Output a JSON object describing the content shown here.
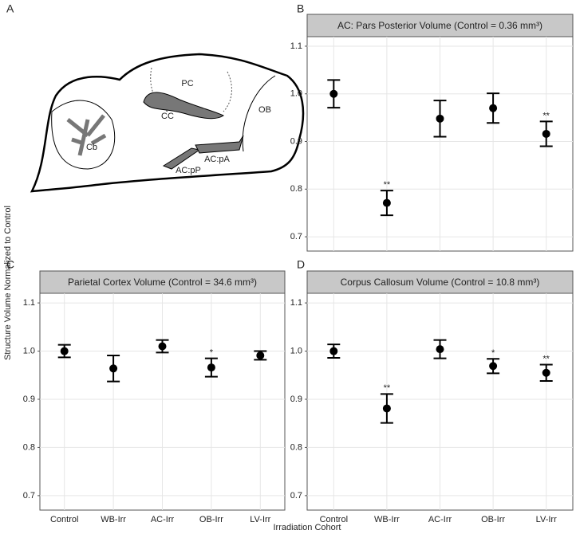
{
  "y_label": "Structure Volume Normalized to Control",
  "x_label": "Irradiation Cohort",
  "diagram": {
    "panel": "A",
    "labels": [
      "PC",
      "CC",
      "OB",
      "Cb",
      "AC:pA",
      "AC:pP"
    ]
  },
  "chart_data": [
    {
      "type": "errorbar",
      "panel": "B",
      "title": "AC: Pars Posterior Volume (Control = 0.36 mm³)",
      "categories": [
        null,
        null,
        null,
        null,
        null
      ],
      "values": [
        1.0,
        0.771,
        0.948,
        0.97,
        0.916
      ],
      "errors": [
        0.029,
        0.026,
        0.038,
        0.031,
        0.026
      ],
      "sig_labels": [
        null,
        "**",
        null,
        null,
        "**"
      ],
      "ylim": [
        0.67,
        1.12
      ],
      "yticks": [
        0.7,
        0.8,
        0.9,
        {
          "value": 1,
          "label": "1.0"
        },
        1.1
      ],
      "grid": true,
      "color": "#000000"
    },
    {
      "type": "errorbar",
      "panel": "C",
      "title": "Parietal Cortex Volume (Control = 34.6 mm³)",
      "categories": [
        "Control",
        "WB-Irr",
        "AC-Irr",
        "OB-Irr",
        "LV-Irr"
      ],
      "values": [
        1.0,
        0.964,
        1.01,
        0.966,
        0.991
      ],
      "errors": [
        0.013,
        0.027,
        0.013,
        0.019,
        0.009
      ],
      "sig_labels": [
        null,
        null,
        null,
        "*",
        null
      ],
      "ylim": [
        0.67,
        1.12
      ],
      "yticks": [
        0.7,
        0.8,
        0.9,
        {
          "value": 1,
          "label": "1.0"
        },
        1.1
      ],
      "grid": true,
      "color": "#000000"
    },
    {
      "type": "errorbar",
      "panel": "D",
      "title": "Corpus Callosum Volume (Control = 10.8 mm³)",
      "categories": [
        "Control",
        "WB-Irr",
        "AC-Irr",
        "OB-Irr",
        "LV-Irr"
      ],
      "values": [
        1.0,
        0.881,
        1.004,
        0.969,
        0.955
      ],
      "errors": [
        0.014,
        0.03,
        0.019,
        0.015,
        0.017
      ],
      "sig_labels": [
        null,
        "**",
        null,
        "*",
        "**"
      ],
      "ylim": [
        0.67,
        1.12
      ],
      "yticks": [
        0.7,
        0.8,
        0.9,
        {
          "value": 1,
          "label": "1.0"
        },
        1.1
      ],
      "grid": true,
      "color": "#000000"
    }
  ]
}
